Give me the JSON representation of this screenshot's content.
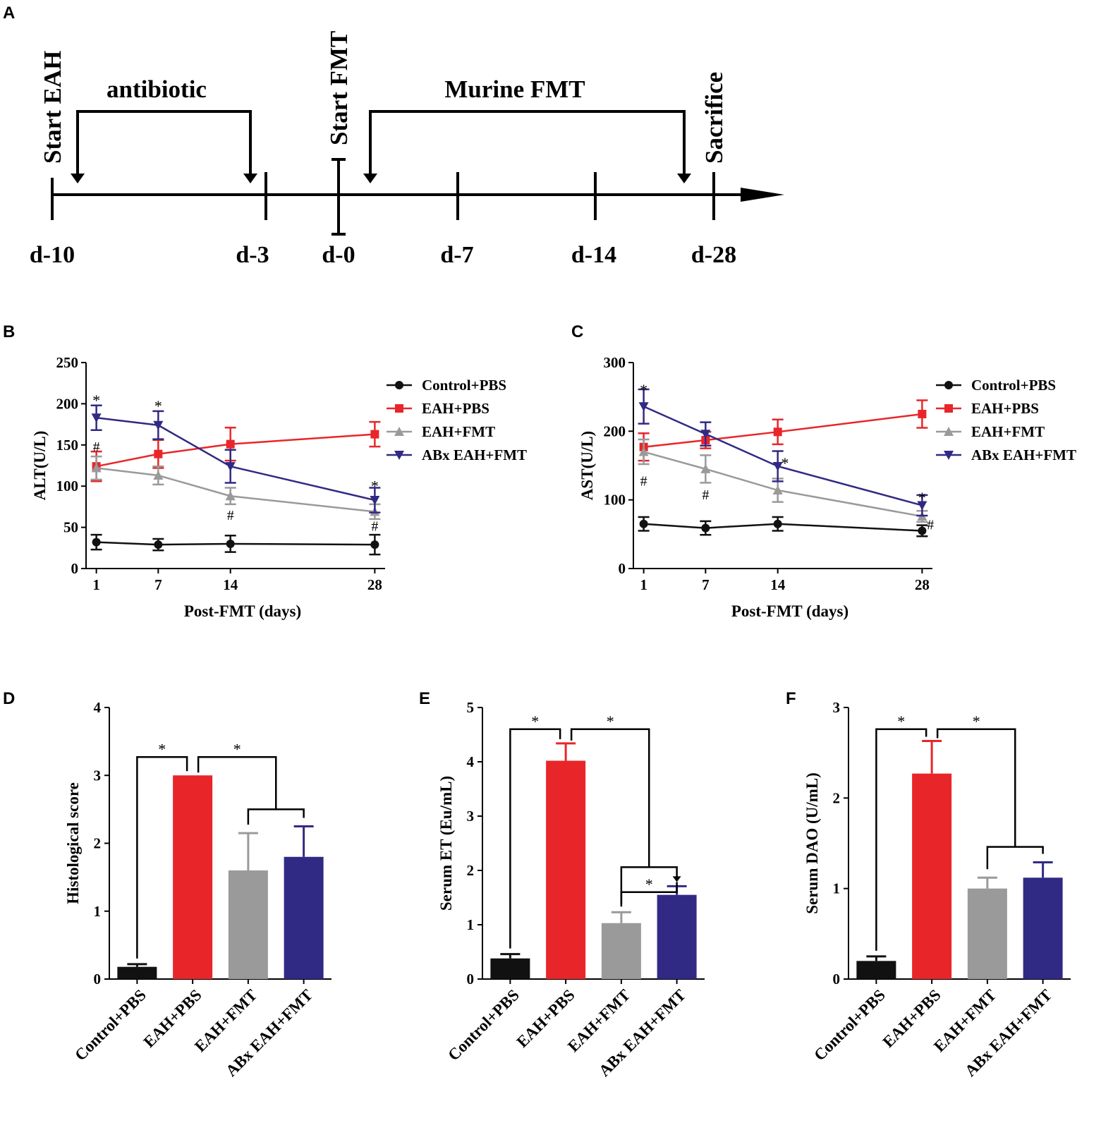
{
  "panels": {
    "A": "A",
    "B": "B",
    "C": "C",
    "D": "D",
    "E": "E",
    "F": "F"
  },
  "timeline": {
    "vertical_labels": [
      "Start EAH",
      "Start FMT",
      "Sacrifice"
    ],
    "bracket_labels": [
      "antibiotic",
      "Murine FMT"
    ],
    "days": [
      "d-10",
      "d-3",
      "d-0",
      "d-7",
      "d-14",
      "d-28"
    ]
  },
  "colors": {
    "control": "#111111",
    "eah_pbs": "#e8262a",
    "eah_fmt": "#9a9a9a",
    "abx_fmt": "#312a84"
  },
  "chart_data": [
    {
      "id": "B",
      "type": "line",
      "title": "",
      "xlabel": "Post-FMT (days)",
      "ylabel": "ALT(U/L)",
      "x": [
        1,
        7,
        14,
        28
      ],
      "xticks": [
        "1",
        "7",
        "14",
        "28"
      ],
      "yticks": [
        "0",
        "50",
        "100",
        "150",
        "200",
        "250"
      ],
      "xlim": [
        0,
        29
      ],
      "ylim": [
        0,
        250
      ],
      "legend": [
        "Control+PBS",
        "EAH+PBS",
        "EAH+FMT",
        "ABx EAH+FMT"
      ],
      "series": [
        {
          "name": "Control+PBS",
          "values": [
            32,
            29,
            30,
            29
          ],
          "errors": [
            9,
            7,
            10,
            12
          ]
        },
        {
          "name": "EAH+PBS",
          "values": [
            124,
            139,
            151,
            163
          ],
          "errors": [
            18,
            17,
            20,
            15
          ]
        },
        {
          "name": "EAH+FMT",
          "values": [
            122,
            113,
            88,
            69
          ],
          "errors": [
            14,
            11,
            10,
            9
          ]
        },
        {
          "name": "ABx EAH+FMT",
          "values": [
            183,
            174,
            124,
            83
          ],
          "errors": [
            15,
            17,
            20,
            15
          ]
        }
      ],
      "annotations": [
        {
          "text": "*",
          "x": 1,
          "y": 208
        },
        {
          "text": "#",
          "x": 1,
          "y": 148
        },
        {
          "text": "*",
          "x": 7,
          "y": 201
        },
        {
          "text": "#",
          "x": 14,
          "y": 65
        },
        {
          "text": "*",
          "x": 28,
          "y": 104
        },
        {
          "text": "#",
          "x": 28,
          "y": 52
        }
      ]
    },
    {
      "id": "C",
      "type": "line",
      "title": "",
      "xlabel": "Post-FMT (days)",
      "ylabel": "AST(U/L)",
      "x": [
        1,
        7,
        14,
        28
      ],
      "xticks": [
        "1",
        "7",
        "14",
        "28"
      ],
      "yticks": [
        "0",
        "100",
        "200",
        "300"
      ],
      "xlim": [
        0,
        29
      ],
      "ylim": [
        0,
        300
      ],
      "legend": [
        "Control+PBS",
        "EAH+PBS",
        "EAH+FMT",
        "ABx EAH+FMT"
      ],
      "series": [
        {
          "name": "Control+PBS",
          "values": [
            65,
            59,
            65,
            55
          ],
          "errors": [
            10,
            10,
            10,
            8
          ]
        },
        {
          "name": "EAH+PBS",
          "values": [
            177,
            187,
            199,
            225
          ],
          "errors": [
            20,
            12,
            18,
            20
          ]
        },
        {
          "name": "EAH+FMT",
          "values": [
            170,
            145,
            114,
            76
          ],
          "errors": [
            18,
            20,
            17,
            8
          ]
        },
        {
          "name": "ABx EAH+FMT",
          "values": [
            236,
            196,
            149,
            92
          ],
          "errors": [
            25,
            17,
            22,
            15
          ]
        }
      ],
      "annotations": [
        {
          "text": "*",
          "x": 1,
          "y": 265
        },
        {
          "text": "#",
          "x": 1,
          "y": 128
        },
        {
          "text": "#",
          "x": 7,
          "y": 108
        },
        {
          "text": "*",
          "x": 14.7,
          "y": 158
        },
        {
          "text": "*",
          "x": 28,
          "y": 108
        },
        {
          "text": "#",
          "x": 28.8,
          "y": 64
        }
      ]
    },
    {
      "id": "D",
      "type": "bar",
      "title": "",
      "xlabel": "",
      "ylabel": "Histological score",
      "categories": [
        "Control+PBS",
        "EAH+PBS",
        "EAH+FMT",
        "ABx EAH+FMT"
      ],
      "values": [
        0.18,
        3.0,
        1.6,
        1.8
      ],
      "errors": [
        0.04,
        0,
        0.55,
        0.45
      ],
      "yticks": [
        "0",
        "1",
        "2",
        "3",
        "4"
      ],
      "ylim": [
        0,
        4
      ],
      "significance": [
        {
          "text": "*",
          "from": 0,
          "to": 1,
          "y": 3.27
        },
        {
          "text": "*",
          "from": 1,
          "to": "2-3",
          "y": 3.27,
          "sub_y": 2.5
        }
      ]
    },
    {
      "id": "E",
      "type": "bar",
      "title": "",
      "xlabel": "",
      "ylabel": "Serum ET (Eu/mL)",
      "categories": [
        "Control+PBS",
        "EAH+PBS",
        "EAH+FMT",
        "ABx EAH+FMT"
      ],
      "values": [
        0.38,
        4.02,
        1.03,
        1.55
      ],
      "errors": [
        0.08,
        0.32,
        0.2,
        0.16
      ],
      "yticks": [
        "0",
        "1",
        "2",
        "3",
        "4",
        "5"
      ],
      "ylim": [
        0,
        5
      ],
      "significance": [
        {
          "text": "*",
          "from": 0,
          "to": 1,
          "y": 4.6
        },
        {
          "text": "*",
          "from": 1,
          "to": "2-3",
          "y": 4.6,
          "sub_y": 2.06
        },
        {
          "text": "*",
          "from": 2,
          "to": 3,
          "y": 1.6
        }
      ]
    },
    {
      "id": "F",
      "type": "bar",
      "title": "",
      "xlabel": "",
      "ylabel": "Serum DAO (U/mL)",
      "categories": [
        "Control+PBS",
        "EAH+PBS",
        "EAH+FMT",
        "ABx EAH+FMT"
      ],
      "values": [
        0.2,
        2.27,
        1.0,
        1.12
      ],
      "errors": [
        0.05,
        0.36,
        0.12,
        0.17
      ],
      "yticks": [
        "0",
        "1",
        "2",
        "3"
      ],
      "ylim": [
        0,
        3
      ],
      "significance": [
        {
          "text": "*",
          "from": 0,
          "to": 1,
          "y": 2.76
        },
        {
          "text": "*",
          "from": 1,
          "to": "2-3",
          "y": 2.76,
          "sub_y": 1.46
        }
      ]
    }
  ]
}
